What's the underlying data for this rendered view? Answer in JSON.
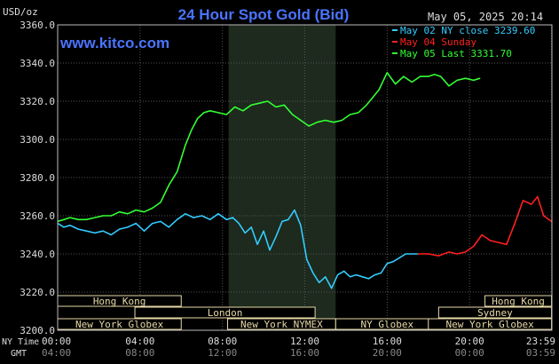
{
  "header": {
    "title": "24 Hour Spot Gold (Bid)",
    "unit": "USD/oz",
    "timestamp": "May 05, 2025 20:14",
    "site": "www.kitco.com"
  },
  "legend": [
    {
      "label": "May 02 NY close 3239.60",
      "color": "#33ccff"
    },
    {
      "label": "May 04 Sunday",
      "color": "#ff2020"
    },
    {
      "label": "May 05 Last 3331.70",
      "color": "#33ff33"
    }
  ],
  "axis_labels": {
    "ny_time": "NY Time",
    "gmt": "GMT",
    "ny_ticks": [
      "00:00",
      "04:00",
      "08:00",
      "12:00",
      "16:00",
      "20:00",
      "23:59"
    ],
    "gmt_ticks": [
      "04:00",
      "08:00",
      "12:00",
      "16:00",
      "20:00",
      "00:00",
      "03:59"
    ]
  },
  "sessions": [
    {
      "label": "Hong Kong",
      "start": 0,
      "end": 6
    },
    {
      "label": "London",
      "start": 3.75,
      "end": 12.5
    },
    {
      "label": "New York Globex",
      "start": 0,
      "end": 6
    },
    {
      "label": "New York NYMEX",
      "start": 8.25,
      "end": 13.5
    },
    {
      "label": "NY Globex",
      "start": 13.5,
      "end": 18.5
    },
    {
      "label": "Hong Kong",
      "start": 20.75,
      "end": 23.98
    },
    {
      "label": "Sydney",
      "start": 18.5,
      "end": 23.98
    },
    {
      "label": "New York Globex",
      "start": 18,
      "end": 23.98
    }
  ],
  "chart_data": {
    "type": "line",
    "title": "24 Hour Spot Gold (Bid)",
    "ylabel": "USD/oz",
    "xlabel": "NY Time",
    "xlim": [
      0,
      24
    ],
    "ylim": [
      3200,
      3360
    ],
    "y_ticks": [
      3200.0,
      3220.0,
      3240.0,
      3260.0,
      3280.0,
      3300.0,
      3320.0,
      3340.0,
      3360.0
    ],
    "y_tick_labels": [
      "3200.0",
      "3220.0",
      "3240.0",
      "3260.0",
      "3280.0",
      "3300.0",
      "3320.0",
      "3340.0",
      "3360.0"
    ],
    "x_ticks": [
      0,
      4,
      8,
      12,
      16,
      20,
      23.98
    ],
    "grid": true,
    "shaded_x_range": [
      8.3,
      13.5
    ],
    "series": [
      {
        "name": "May 02 NY close 3239.60",
        "color": "#33ccff",
        "x": [
          0,
          0.3,
          0.6,
          1.0,
          1.4,
          1.8,
          2.2,
          2.6,
          3.0,
          3.4,
          3.8,
          4.2,
          4.6,
          5.0,
          5.4,
          5.8,
          6.2,
          6.6,
          7.0,
          7.4,
          7.8,
          8.2,
          8.5,
          8.8,
          9.1,
          9.4,
          9.7,
          10.0,
          10.3,
          10.6,
          10.9,
          11.2,
          11.5,
          11.8,
          12.1,
          12.4,
          12.7,
          13.0,
          13.3,
          13.6,
          13.9,
          14.2,
          14.5,
          14.8,
          15.1,
          15.4,
          15.7,
          16.0,
          16.3,
          16.6,
          16.9,
          17.2,
          17.5
        ],
        "values": [
          3256,
          3254,
          3255,
          3253,
          3252,
          3251,
          3252,
          3250,
          3253,
          3254,
          3256,
          3252,
          3256,
          3257,
          3254,
          3258,
          3261,
          3259,
          3260,
          3258,
          3261,
          3258,
          3259,
          3256,
          3251,
          3254,
          3245,
          3252,
          3242,
          3249,
          3257,
          3258,
          3263,
          3255,
          3237,
          3230,
          3225,
          3228,
          3222,
          3229,
          3231,
          3228,
          3229,
          3228,
          3227,
          3229,
          3230,
          3235,
          3236,
          3238,
          3240,
          3240,
          3240
        ]
      },
      {
        "name": "May 04 Sunday",
        "color": "#ff2020",
        "x": [
          17.5,
          18.0,
          18.5,
          19.0,
          19.4,
          19.8,
          20.2,
          20.6,
          21.0,
          21.4,
          21.8,
          22.2,
          22.6,
          23.0,
          23.3,
          23.6,
          23.98
        ],
        "values": [
          3240,
          3240,
          3239,
          3241,
          3240,
          3241,
          3244,
          3250,
          3247,
          3246,
          3245,
          3256,
          3268,
          3266,
          3270,
          3260,
          3257
        ]
      },
      {
        "name": "May 05 Last 3331.70",
        "color": "#33ff33",
        "x": [
          0,
          0.3,
          0.6,
          1.0,
          1.4,
          1.8,
          2.2,
          2.6,
          3.0,
          3.4,
          3.8,
          4.2,
          4.6,
          5.0,
          5.4,
          5.8,
          6.2,
          6.5,
          6.8,
          7.1,
          7.4,
          7.8,
          8.2,
          8.6,
          9.0,
          9.4,
          9.8,
          10.2,
          10.6,
          11.0,
          11.4,
          11.8,
          12.2,
          12.6,
          13.0,
          13.4,
          13.8,
          14.2,
          14.6,
          15.0,
          15.3,
          15.6,
          16.0,
          16.4,
          16.8,
          17.2,
          17.6,
          18.0,
          18.3,
          18.6,
          19.0,
          19.4,
          19.8,
          20.2,
          20.5
        ],
        "values": [
          3257,
          3258,
          3259,
          3258,
          3258,
          3259,
          3260,
          3260,
          3262,
          3261,
          3263,
          3262,
          3264,
          3267,
          3276,
          3283,
          3297,
          3305,
          3311,
          3314,
          3315,
          3314,
          3313,
          3317,
          3315,
          3318,
          3319,
          3320,
          3317,
          3318,
          3313,
          3310,
          3307,
          3309,
          3310,
          3309,
          3310,
          3313,
          3314,
          3318,
          3322,
          3326,
          3335,
          3329,
          3333,
          3330,
          3333,
          3333,
          3334,
          3333,
          3328,
          3331,
          3332,
          3331,
          3332
        ]
      }
    ]
  }
}
